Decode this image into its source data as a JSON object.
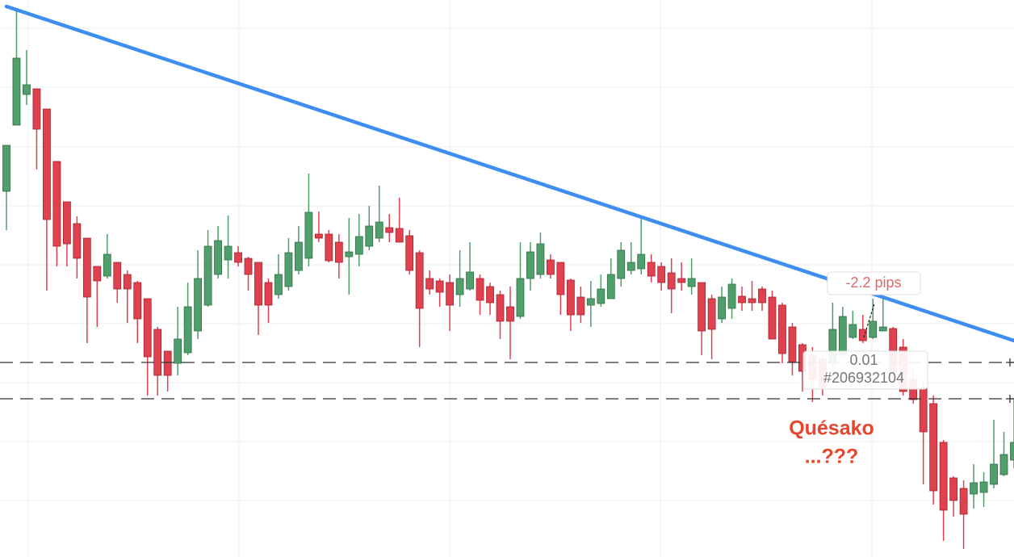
{
  "chart_data": {
    "type": "candlestick",
    "up_color": "#4f9e6c",
    "down_color": "#e0414f",
    "ylim": [
      0,
      690
    ],
    "ohlc": [
      [
        453,
        510,
        405,
        510
      ],
      [
        535,
        680,
        535,
        618
      ],
      [
        573,
        628,
        560,
        585
      ],
      [
        580,
        580,
        480,
        530
      ],
      [
        555,
        555,
        330,
        418
      ],
      [
        490,
        490,
        360,
        385
      ],
      [
        440,
        440,
        360,
        388
      ],
      [
        413,
        422,
        345,
        370
      ],
      [
        395,
        395,
        265,
        322
      ],
      [
        360,
        360,
        285,
        342
      ],
      [
        348,
        400,
        345,
        375
      ],
      [
        365,
        365,
        315,
        332
      ],
      [
        350,
        355,
        290,
        332
      ],
      [
        340,
        342,
        265,
        295
      ],
      [
        320,
        320,
        200,
        248
      ],
      [
        282,
        285,
        200,
        225
      ],
      [
        255,
        255,
        205,
        225
      ],
      [
        240,
        310,
        225,
        270
      ],
      [
        253,
        340,
        250,
        310
      ],
      [
        280,
        380,
        270,
        345
      ],
      [
        312,
        405,
        310,
        385
      ],
      [
        350,
        410,
        345,
        392
      ],
      [
        368,
        423,
        345,
        385
      ],
      [
        377,
        385,
        360,
        365
      ],
      [
        370,
        372,
        330,
        350
      ],
      [
        365,
        365,
        275,
        312
      ],
      [
        340,
        345,
        290,
        312
      ],
      [
        325,
        375,
        320,
        350
      ],
      [
        335,
        395,
        330,
        377
      ],
      [
        355,
        410,
        350,
        390
      ],
      [
        370,
        475,
        360,
        427
      ],
      [
        400,
        428,
        390,
        395
      ],
      [
        400,
        405,
        365,
        367
      ],
      [
        390,
        400,
        345,
        365
      ],
      [
        372,
        420,
        325,
        378
      ],
      [
        375,
        425,
        360,
        397
      ],
      [
        385,
        435,
        380,
        410
      ],
      [
        395,
        460,
        390,
        415
      ],
      [
        408,
        425,
        390,
        402
      ],
      [
        407,
        445,
        390,
        390
      ],
      [
        398,
        405,
        350,
        355
      ],
      [
        377,
        380,
        260,
        308
      ],
      [
        345,
        355,
        325,
        332
      ],
      [
        342,
        345,
        310,
        328
      ],
      [
        340,
        350,
        280,
        312
      ],
      [
        325,
        380,
        310,
        345
      ],
      [
        332,
        390,
        330,
        353
      ],
      [
        345,
        350,
        300,
        318
      ],
      [
        335,
        340,
        300,
        315
      ],
      [
        325,
        330,
        270,
        292
      ],
      [
        310,
        335,
        245,
        292
      ],
      [
        298,
        390,
        295,
        345
      ],
      [
        345,
        390,
        330,
        378
      ],
      [
        350,
        402,
        345,
        388
      ],
      [
        368,
        375,
        345,
        350
      ],
      [
        365,
        365,
        300,
        325
      ],
      [
        343,
        345,
        280,
        300
      ],
      [
        322,
        335,
        290,
        300
      ],
      [
        312,
        342,
        285,
        320
      ],
      [
        314,
        350,
        310,
        332
      ],
      [
        320,
        370,
        320,
        350
      ],
      [
        345,
        390,
        335,
        380
      ],
      [
        355,
        390,
        350,
        365
      ],
      [
        357,
        420,
        350,
        375
      ],
      [
        365,
        375,
        340,
        348
      ],
      [
        360,
        365,
        330,
        340
      ],
      [
        352,
        370,
        302,
        332
      ],
      [
        345,
        365,
        330,
        340
      ],
      [
        335,
        370,
        325,
        345
      ],
      [
        340,
        340,
        250,
        280
      ],
      [
        320,
        325,
        245,
        282
      ],
      [
        295,
        335,
        290,
        322
      ],
      [
        308,
        345,
        295,
        338
      ],
      [
        323,
        335,
        305,
        315
      ],
      [
        320,
        342,
        305,
        315
      ],
      [
        332,
        335,
        305,
        315
      ],
      [
        322,
        330,
        270,
        270
      ],
      [
        312,
        315,
        240,
        252
      ],
      [
        285,
        290,
        225,
        242
      ],
      [
        263,
        265,
        205,
        230
      ],
      [
        250,
        260,
        192,
        220
      ],
      [
        245,
        250,
        200,
        210
      ],
      [
        240,
        315,
        235,
        282
      ],
      [
        250,
        310,
        250,
        298
      ],
      [
        272,
        305,
        270,
        288
      ],
      [
        282,
        300,
        265,
        268
      ],
      [
        272,
        320,
        270,
        292
      ],
      [
        280,
        322,
        280,
        285
      ],
      [
        283,
        285,
        215,
        230
      ],
      [
        260,
        270,
        200,
        205
      ],
      [
        220,
        235,
        190,
        195
      ],
      [
        210,
        220,
        90,
        155
      ],
      [
        190,
        200,
        65,
        82
      ],
      [
        142,
        145,
        20,
        58
      ],
      [
        98,
        100,
        50,
        70
      ],
      [
        85,
        95,
        10,
        53
      ],
      [
        78,
        115,
        60,
        92
      ],
      [
        80,
        105,
        62,
        93
      ],
      [
        90,
        170,
        85,
        115
      ],
      [
        102,
        155,
        100,
        127
      ],
      [
        120,
        195,
        110,
        142
      ]
    ],
    "measure_label": "-2.2 pips",
    "tooltip": {
      "lot": "0.01",
      "ticket": "#206932104"
    },
    "note": [
      "Quésako",
      "...???"
    ]
  }
}
